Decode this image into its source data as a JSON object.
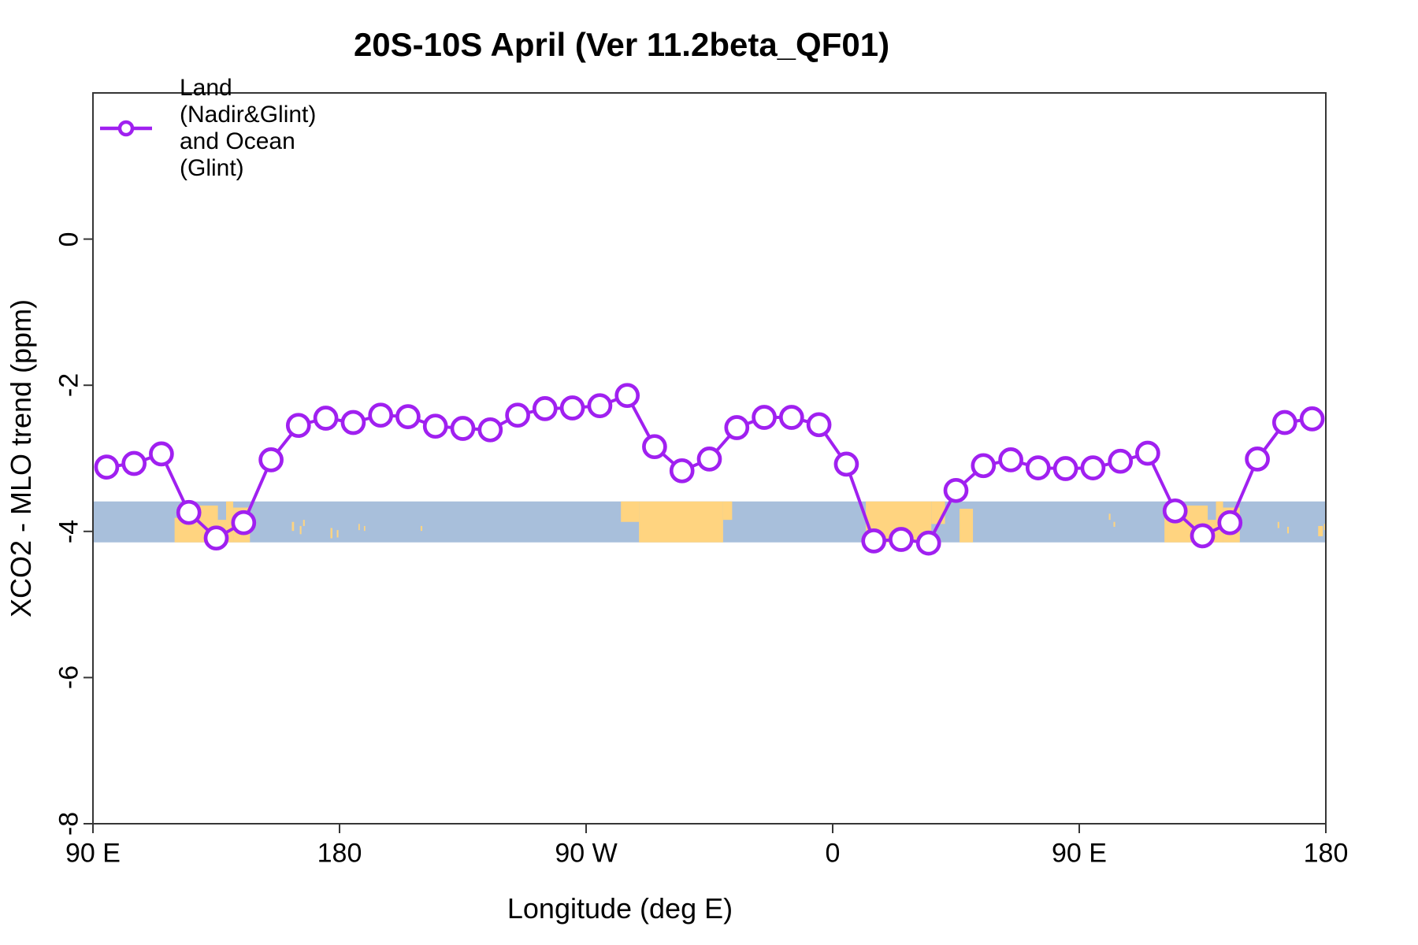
{
  "title": "20S-10S April (Ver 11.2beta_QF01)",
  "legend": {
    "label": "Land (Nadir&Glint) and Ocean (Glint)"
  },
  "chart_data": {
    "type": "line",
    "title": "20S-10S April (Ver 11.2beta_QF01)",
    "xlabel": "Longitude (deg E)",
    "ylabel": "XCO2 - MLO trend (ppm)",
    "xlim_deg": [
      90,
      540
    ],
    "ylim": [
      2,
      -8
    ],
    "grid": false,
    "legend_position": "top-left-inside",
    "x_ticks": [
      {
        "lon": 90,
        "label": "90 E"
      },
      {
        "lon": 180,
        "label": "180"
      },
      {
        "lon": 270,
        "label": "90 W"
      },
      {
        "lon": 360,
        "label": "0"
      },
      {
        "lon": 450,
        "label": "90 E"
      },
      {
        "lon": 540,
        "label": "180"
      }
    ],
    "y_ticks": [
      {
        "value": 0,
        "label": "0"
      },
      {
        "value": -2,
        "label": "-2"
      },
      {
        "value": -4,
        "label": "-4"
      },
      {
        "value": -6,
        "label": "-6"
      },
      {
        "value": -8,
        "label": "-8"
      }
    ],
    "series": [
      {
        "name": "Land (Nadir&Glint) and Ocean (Glint)",
        "color": "#A020F0",
        "marker": "open-circle",
        "x_deg": [
          95,
          105,
          115,
          125,
          135,
          145,
          155,
          165,
          175,
          185,
          195,
          205,
          215,
          225,
          235,
          245,
          255,
          265,
          275,
          285,
          295,
          305,
          315,
          325,
          335,
          345,
          355,
          365,
          375,
          385,
          395,
          405,
          415,
          425,
          435,
          445,
          455,
          465,
          475,
          485,
          495,
          505,
          515,
          525,
          535
        ],
        "values": [
          -3.12,
          -3.07,
          -2.94,
          -3.74,
          -4.09,
          -3.88,
          -3.02,
          -2.55,
          -2.45,
          -2.51,
          -2.41,
          -2.43,
          -2.56,
          -2.59,
          -2.61,
          -2.41,
          -2.32,
          -2.31,
          -2.28,
          -2.14,
          -2.84,
          -3.17,
          -3.01,
          -2.58,
          -2.44,
          -2.44,
          -2.54,
          -3.08,
          -4.13,
          -4.11,
          -4.16,
          -3.44,
          -3.1,
          -3.02,
          -3.13,
          -3.14,
          -3.13,
          -3.04,
          -2.93,
          -3.72,
          -4.06,
          -3.88,
          -3.01,
          -2.51,
          -2.46
        ]
      }
    ],
    "map_band": {
      "description": "World-map strip of the 20S-10S latitude band drawn across the plot",
      "value_top": -3.59,
      "value_bottom": -4.15,
      "ocean_color": "#A8BFDB",
      "land_color": "#FFD480",
      "land_patches": [
        {
          "name": "australia",
          "fragments": [
            [
              119.8,
              120.9,
              0.4,
              1
            ],
            [
              120.9,
              135.6,
              0.1,
              1
            ],
            [
              135.6,
              138.6,
              0.45,
              1
            ],
            [
              138.6,
              141.2,
              0,
              1
            ],
            [
              141.2,
              147.3,
              0.15,
              1
            ]
          ]
        },
        {
          "name": "melanesia-islands",
          "fragments": [
            [
              162.6,
              163.4,
              0.5,
              0.72
            ],
            [
              165.5,
              166.1,
              0.6,
              0.8
            ],
            [
              166.7,
              167.3,
              0.45,
              0.6
            ],
            [
              176.7,
              177.4,
              0.65,
              0.9
            ],
            [
              179.0,
              179.6,
              0.7,
              0.88
            ],
            [
              186.9,
              187.4,
              0.55,
              0.7
            ],
            [
              188.9,
              189.4,
              0.6,
              0.72
            ],
            [
              209.6,
              210.2,
              0.6,
              0.72
            ]
          ]
        },
        {
          "name": "south-america",
          "fragments": [
            [
              282.7,
              289.3,
              0,
              0.5
            ],
            [
              289.3,
              320.0,
              0,
              1
            ],
            [
              320.0,
              323.3,
              0,
              0.45
            ]
          ]
        },
        {
          "name": "africa",
          "fragments": [
            [
              372.1,
              396.0,
              0,
              1
            ],
            [
              396.0,
              401.0,
              0,
              0.55
            ]
          ]
        },
        {
          "name": "madagascar",
          "fragments": [
            [
              406.3,
              411.2,
              0.18,
              1
            ]
          ]
        },
        {
          "name": "indian-ocean-islands",
          "fragments": [
            [
              460.8,
              461.4,
              0.3,
              0.45
            ],
            [
              462.5,
              463.1,
              0.5,
              0.62
            ]
          ]
        },
        {
          "name": "australia-wrapped",
          "fragments": [
            [
              481.1,
              482.2,
              0.4,
              1
            ],
            [
              482.2,
              496.9,
              0.1,
              1
            ],
            [
              496.9,
              499.9,
              0.45,
              1
            ],
            [
              499.9,
              502.5,
              0,
              1
            ],
            [
              502.5,
              508.6,
              0.15,
              1
            ]
          ]
        },
        {
          "name": "melanesia-islands-wrapped",
          "fragments": [
            [
              522.4,
              523.0,
              0.5,
              0.65
            ],
            [
              525.9,
              526.5,
              0.62,
              0.78
            ],
            [
              537.2,
              538.9,
              0.6,
              0.85
            ],
            [
              539.3,
              540.0,
              0.55,
              0.7
            ]
          ]
        }
      ]
    },
    "frame_color": "#363636"
  }
}
